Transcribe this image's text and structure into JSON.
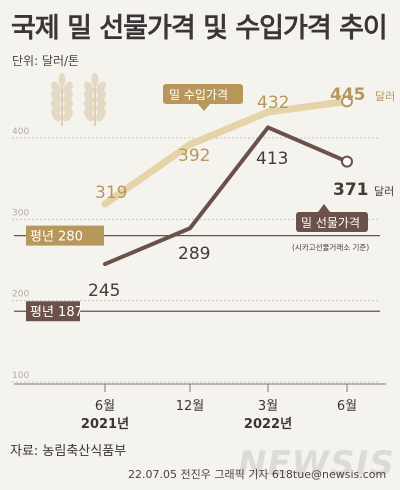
{
  "title": "국제 밀 선물가격 및 수입가격 추이",
  "unit": "단위: 달러/톤",
  "source": "자료: 농림축산식품부",
  "credit": "22.07.05 전진우 그래픽 기자 618tue@newsis.com",
  "watermark": "NEWSIS",
  "colors": {
    "background": "#f4f3ee",
    "import_line": "#e5d4a8",
    "futures_line": "#6b5149",
    "import_label": "#b8975c",
    "futures_label": "#4a3a35",
    "avg_line": "#6b5149",
    "grid": "#c9c3bd"
  },
  "icons": [
    "wheat-icon",
    "wheat-icon"
  ],
  "chart_data": {
    "type": "line",
    "x": [
      "6월",
      "12월",
      "3월",
      "6월"
    ],
    "x_year_labels": [
      "2021년",
      "2022년"
    ],
    "ylim": [
      100,
      480
    ],
    "yticks": [
      100,
      200,
      300,
      400
    ],
    "grid": true,
    "series": [
      {
        "name": "밀 수입가격",
        "values": [
          319,
          392,
          432,
          445
        ],
        "labels": [
          "319",
          "392",
          "432",
          "445"
        ],
        "last_unit": "달러"
      },
      {
        "name": "밀 선물가격",
        "note": "(시카고선물거래소 기준)",
        "values": [
          245,
          289,
          413,
          371
        ],
        "labels": [
          "245",
          "289",
          "413",
          "371"
        ],
        "last_unit": "달러"
      }
    ],
    "reference_lines": [
      {
        "label": "평년 280",
        "value": 280
      },
      {
        "label": "평년 187",
        "value": 187
      }
    ]
  }
}
